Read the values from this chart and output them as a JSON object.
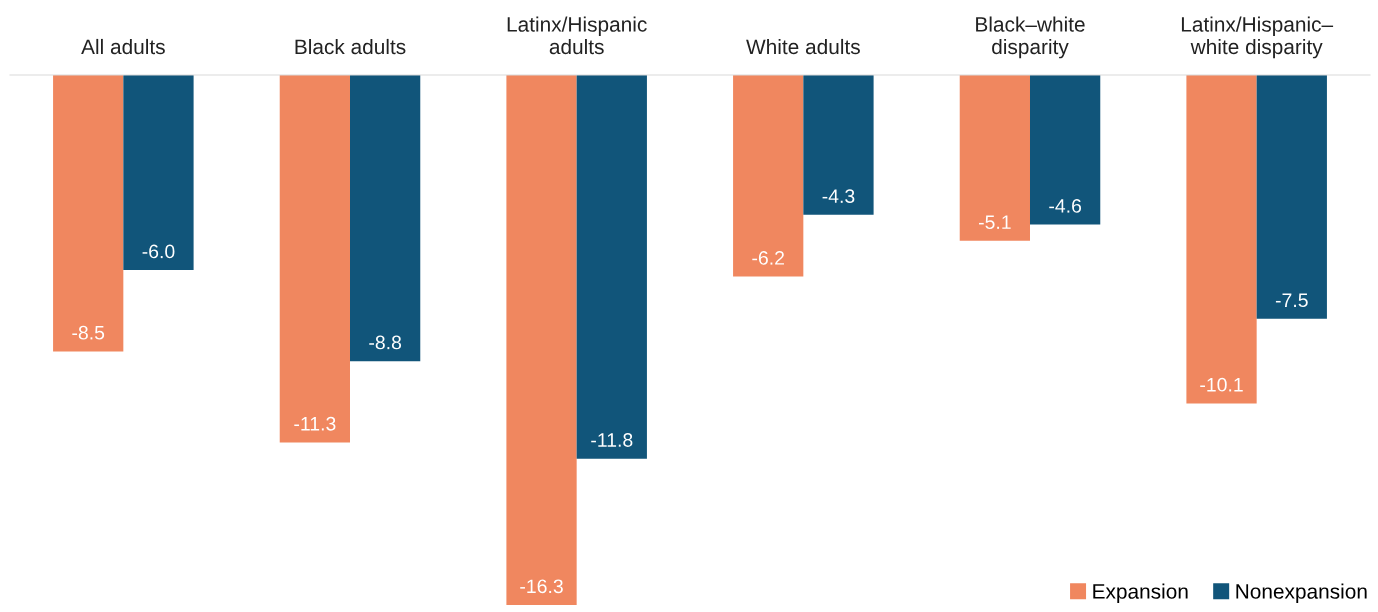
{
  "chart_data": {
    "type": "bar",
    "categories": [
      "All adults",
      "Black adults",
      "Latinx/Hispanic\nadults",
      "White adults",
      "Black–white\ndisparity",
      "Latinx/Hispanic–\nwhite disparity"
    ],
    "series": [
      {
        "name": "Expansion",
        "color": "#f0875f",
        "values": [
          -8.5,
          -11.3,
          -16.3,
          -6.2,
          -5.1,
          -10.1
        ],
        "value_labels": [
          "-8.5",
          "-11.3",
          "-16.3",
          "-6.2",
          "-5.1",
          "-10.1"
        ]
      },
      {
        "name": "Nonexpansion",
        "color": "#11557a",
        "values": [
          -6.0,
          -8.8,
          -11.8,
          -4.3,
          -4.6,
          -7.5
        ],
        "value_labels": [
          "-6.0",
          "-8.8",
          "-11.8",
          "-4.3",
          "-4.6",
          "-7.5"
        ]
      }
    ],
    "legend": "bottom right"
  }
}
